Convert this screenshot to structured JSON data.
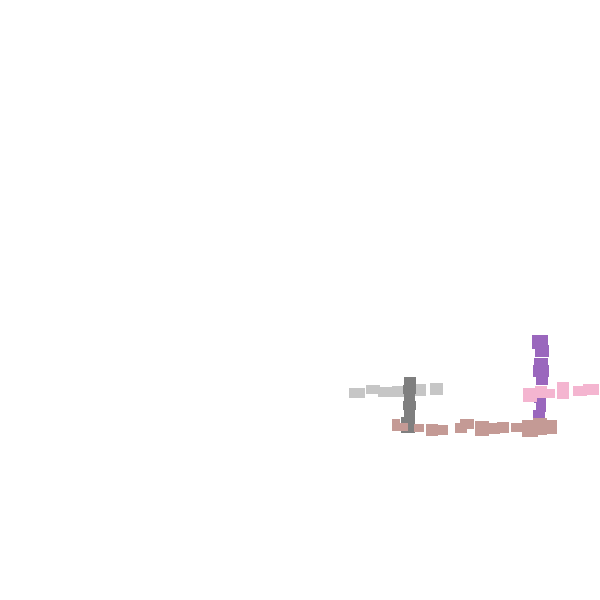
{
  "scene": {
    "background_color": "#ffffff",
    "clusters": [
      {
        "name": "gray-horizontal-bar",
        "color": "#c6c6c6",
        "orientation": "horizontal"
      },
      {
        "name": "dark-gray-vertical-bar",
        "color": "#7f7f7f",
        "orientation": "vertical"
      },
      {
        "name": "tan-horizontal-bar",
        "color": "#c49a95",
        "orientation": "horizontal"
      },
      {
        "name": "purple-vertical-bar",
        "color": "#9a67bd",
        "orientation": "vertical"
      },
      {
        "name": "pink-horizontal-bar",
        "color": "#f4b5d0",
        "orientation": "horizontal"
      }
    ]
  }
}
